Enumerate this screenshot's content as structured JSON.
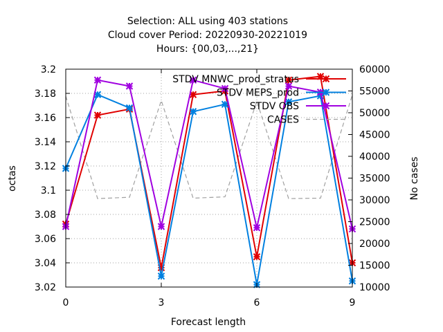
{
  "chart_data": {
    "type": "line",
    "title_lines": [
      "Selection: ALL using   403 stations",
      "Cloud cover   Period: 20220930-20221019",
      "Hours: {00,03,...,21}"
    ],
    "xlabel": "Forecast length",
    "ylabel": "octas",
    "y2label": "No cases",
    "x_ticks": [
      0,
      3,
      6,
      9
    ],
    "xlim": [
      0,
      9
    ],
    "ylim": [
      3.02,
      3.2
    ],
    "y_ticks": [
      3.02,
      3.04,
      3.06,
      3.08,
      3.1,
      3.12,
      3.14,
      3.16,
      3.18,
      3.2
    ],
    "y_tick_labels": [
      "3.02",
      "3.04",
      "3.06",
      "3.08",
      "3.1",
      "3.12",
      "3.14",
      "3.16",
      "3.18",
      "3.2"
    ],
    "y2lim": [
      10000,
      60000
    ],
    "y2_ticks": [
      10000,
      15000,
      20000,
      25000,
      30000,
      35000,
      40000,
      45000,
      50000,
      55000,
      60000
    ],
    "grid": true,
    "legend_position": "top-right",
    "x": [
      0,
      1,
      2,
      3,
      4,
      5,
      6,
      7,
      8,
      9
    ],
    "series": [
      {
        "name": "STDV MNWC_prod_stratus",
        "axis": "y",
        "color": "#e00000",
        "marker": "star",
        "values": [
          3.072,
          3.162,
          3.167,
          3.036,
          3.179,
          3.182,
          3.045,
          3.191,
          3.194,
          3.04
        ]
      },
      {
        "name": "STDV MEPS_prod",
        "axis": "y",
        "color": "#0080e0",
        "marker": "star",
        "values": [
          3.118,
          3.179,
          3.168,
          3.029,
          3.165,
          3.171,
          3.022,
          3.173,
          3.178,
          3.025
        ]
      },
      {
        "name": "STDV OBS",
        "axis": "y",
        "color": "#a000e0",
        "marker": "star",
        "values": [
          3.07,
          3.191,
          3.186,
          3.07,
          3.191,
          3.184,
          3.069,
          3.186,
          3.181,
          3.068
        ]
      },
      {
        "name": "CASES",
        "axis": "y2",
        "color": "#a0a0a0",
        "marker": "none",
        "dashed": true,
        "values": [
          53800,
          30300,
          30600,
          52800,
          30400,
          30700,
          52600,
          30300,
          30400,
          54100
        ]
      }
    ]
  }
}
